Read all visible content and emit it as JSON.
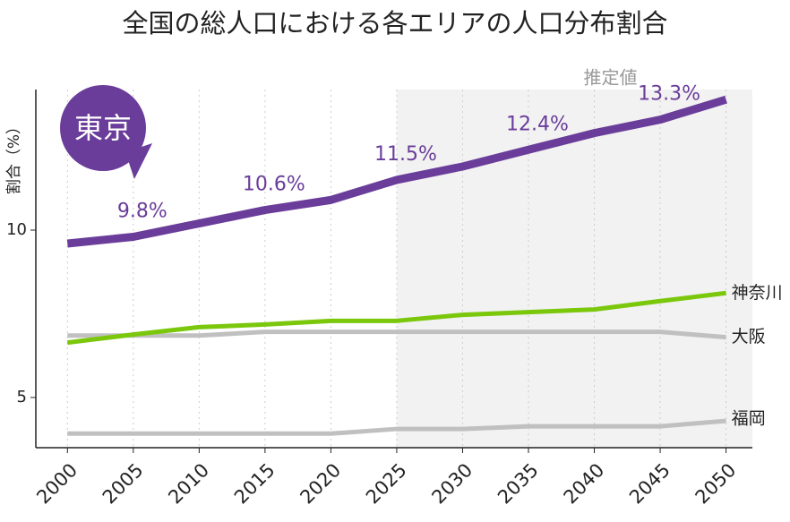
{
  "chart_data": {
    "type": "line",
    "title": "全国の総人口における各エリアの人口分布割合",
    "y_label": "割合（%）",
    "forecast_start": 2025,
    "forecast_label": "推定値",
    "x": [
      2000,
      2005,
      2010,
      2015,
      2020,
      2025,
      2030,
      2035,
      2040,
      2045,
      2050
    ],
    "xlim": [
      1997.6,
      2052
    ],
    "xticks": [
      2000,
      2005,
      2010,
      2015,
      2020,
      2025,
      2030,
      2035,
      2040,
      2045,
      2050
    ],
    "ylim": [
      3.5,
      14.2
    ],
    "yticks": [
      5,
      10
    ],
    "grid": true,
    "series": [
      {
        "name": "東京",
        "color": "#6a3d9a",
        "values": [
          9.6,
          9.8,
          10.2,
          10.6,
          10.9,
          11.5,
          11.9,
          12.4,
          12.9,
          13.3,
          13.9
        ],
        "value_labels": [
          null,
          "9.8%",
          null,
          "10.6%",
          null,
          "11.5%",
          null,
          "12.4%",
          null,
          "13.3%",
          null
        ]
      },
      {
        "name": "神奈川",
        "color": "#7ac70c",
        "values": [
          6.64,
          6.88,
          7.1,
          7.18,
          7.29,
          7.29,
          7.47,
          7.55,
          7.63,
          7.88,
          8.12
        ]
      },
      {
        "name": "大阪",
        "color": "#c0c0c0",
        "values": [
          6.85,
          6.85,
          6.85,
          6.96,
          6.96,
          6.96,
          6.96,
          6.96,
          6.96,
          6.96,
          6.8
        ]
      },
      {
        "name": "福岡",
        "color": "#c0c0c0",
        "values": [
          3.92,
          3.92,
          3.92,
          3.92,
          3.92,
          4.06,
          4.06,
          4.14,
          4.14,
          4.14,
          4.3
        ]
      }
    ]
  }
}
